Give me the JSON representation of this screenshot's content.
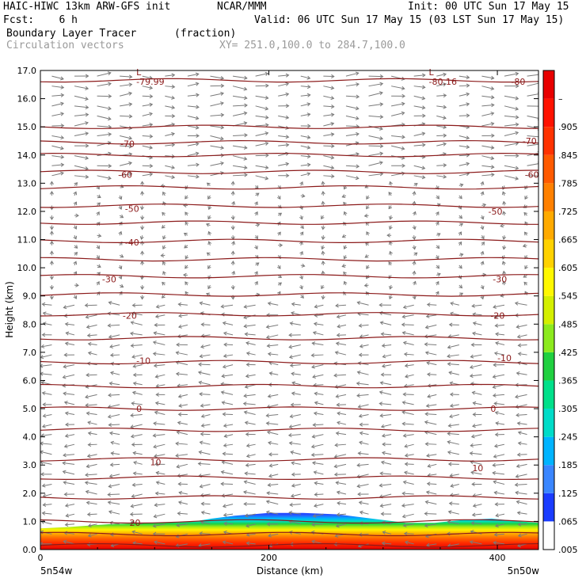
{
  "header": {
    "line1_left": "HAIC-HIWC 13km ARW-GFS init",
    "line1_mid": "NCAR/MMM",
    "line1_right": "Init: 00 UTC Sun 17 May 15",
    "line2_left": "Fcst:    6 h",
    "line2_right": "Valid: 06 UTC Sun 17 May 15 (03 LST Sun 17 May 15)",
    "field_name": "Boundary Layer Tracer",
    "field_units": "(fraction)",
    "vector_label": "Circulation vectors",
    "xsec_label": "XY= 251.0,100.0 to 284.7,100.0"
  },
  "chart_data": {
    "type": "heatmap",
    "xlabel": "Distance (km)",
    "ylabel": "Height (km)",
    "xlim": [
      0,
      436
    ],
    "ylim": [
      0,
      17
    ],
    "x_ticks": [
      "0",
      "200",
      "400"
    ],
    "x_tick_values": [
      0,
      200,
      400
    ],
    "y_ticks": [
      "0.0",
      "1.0",
      "2.0",
      "3.0",
      "4.0",
      "5.0",
      "6.0",
      "7.0",
      "8.0",
      "9.0",
      "10.0",
      "11.0",
      "12.0",
      "13.0",
      "14.0",
      "15.0",
      "16.0",
      "17.0"
    ],
    "x_end_labels": {
      "left": "5n54w",
      "right": "5n50w"
    },
    "colorbar": {
      "labels": [
        ".005",
        ".065",
        ".125",
        ".185",
        ".245",
        ".305",
        ".365",
        ".425",
        ".485",
        ".545",
        ".605",
        ".665",
        ".725",
        ".785",
        ".845",
        ".905",
        "–"
      ],
      "colors": [
        "#ffffff",
        "#1a3cff",
        "#3a86ff",
        "#00b4ff",
        "#00dcc8",
        "#00e08a",
        "#20d040",
        "#8cea1e",
        "#d4ef00",
        "#fff800",
        "#ffd200",
        "#ffaa00",
        "#ff8000",
        "#ff5a00",
        "#ff3200",
        "#ff1200",
        "#e80000"
      ]
    },
    "isotherm_labels": [
      {
        "text": "-79.99",
        "x": 84,
        "y": 16.6
      },
      {
        "text": "-80.16",
        "x": 340,
        "y": 16.6
      },
      {
        "text": "-80",
        "x": 412,
        "y": 16.6
      },
      {
        "text": "-70",
        "x": 70,
        "y": 14.4
      },
      {
        "text": "-70",
        "x": 422,
        "y": 14.5
      },
      {
        "text": "-60",
        "x": 68,
        "y": 13.3
      },
      {
        "text": "-60",
        "x": 424,
        "y": 13.3
      },
      {
        "text": "-50",
        "x": 74,
        "y": 12.1
      },
      {
        "text": "-50",
        "x": 392,
        "y": 12.0
      },
      {
        "text": "-40",
        "x": 74,
        "y": 10.9
      },
      {
        "text": "-30",
        "x": 54,
        "y": 9.6
      },
      {
        "text": "-30",
        "x": 396,
        "y": 9.6
      },
      {
        "text": "-20",
        "x": 72,
        "y": 8.3
      },
      {
        "text": "-20",
        "x": 394,
        "y": 8.3
      },
      {
        "text": "-10",
        "x": 84,
        "y": 6.7
      },
      {
        "text": "-10",
        "x": 400,
        "y": 6.8
      },
      {
        "text": "0",
        "x": 84,
        "y": 5.0
      },
      {
        "text": "0",
        "x": 394,
        "y": 5.0
      },
      {
        "text": "10",
        "x": 96,
        "y": 3.1
      },
      {
        "text": "10",
        "x": 378,
        "y": 2.9
      },
      {
        "text": "20",
        "x": 78,
        "y": 0.95
      }
    ],
    "low_markers": [
      {
        "text": "L",
        "x": 84,
        "y": 16.95
      },
      {
        "text": "L",
        "x": 340,
        "y": 16.95
      }
    ],
    "isotherm_levels_km": [
      0.15,
      0.55,
      1.0,
      1.85,
      2.55,
      3.2,
      4.25,
      5.0,
      5.8,
      6.65,
      7.5,
      8.35,
      9.05,
      9.7,
      10.3,
      10.95,
      11.6,
      12.2,
      12.85,
      13.4,
      14.0,
      14.45,
      15.0,
      16.65
    ],
    "tracer_top_km": [
      [
        0,
        0.75
      ],
      [
        25,
        0.8
      ],
      [
        60,
        0.9
      ],
      [
        100,
        0.95
      ],
      [
        135,
        1.0
      ],
      [
        150,
        1.1
      ],
      [
        170,
        1.2
      ],
      [
        200,
        1.3
      ],
      [
        230,
        1.3
      ],
      [
        260,
        1.25
      ],
      [
        290,
        1.1
      ],
      [
        320,
        0.95
      ],
      [
        345,
        0.95
      ],
      [
        370,
        1.05
      ],
      [
        395,
        1.1
      ],
      [
        420,
        1.0
      ],
      [
        436,
        0.95
      ]
    ]
  }
}
